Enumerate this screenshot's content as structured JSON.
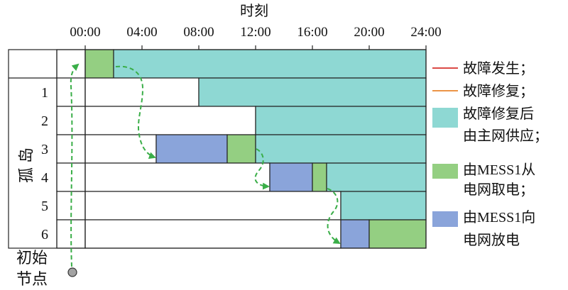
{
  "chart_data": {
    "type": "bar",
    "orientation": "horizontal",
    "xlabel": "时刻",
    "ylabel": "孤岛",
    "xlim": [
      "00:00",
      "24:00"
    ],
    "x_ticks": [
      "00:00",
      "04:00",
      "08:00",
      "12:00",
      "16:00",
      "20:00",
      "24:00"
    ],
    "legend_position": "right",
    "rows": [
      {
        "label": "",
        "segments": [
          {
            "start": "00:00",
            "end": "02:00",
            "series": 3
          },
          {
            "start": "02:00",
            "end": "24:00",
            "series": 2
          }
        ]
      },
      {
        "label": "1",
        "segments": [
          {
            "start": "00:00",
            "end": "08:00",
            "series": null
          },
          {
            "start": "08:00",
            "end": "24:00",
            "series": 2
          }
        ]
      },
      {
        "label": "2",
        "segments": [
          {
            "start": "00:00",
            "end": "12:00",
            "series": null
          },
          {
            "start": "12:00",
            "end": "24:00",
            "series": 2
          }
        ]
      },
      {
        "label": "3",
        "segments": [
          {
            "start": "00:00",
            "end": "05:00",
            "series": null
          },
          {
            "start": "05:00",
            "end": "10:00",
            "series": 4
          },
          {
            "start": "10:00",
            "end": "12:00",
            "series": 3
          },
          {
            "start": "12:00",
            "end": "24:00",
            "series": 2
          }
        ]
      },
      {
        "label": "4",
        "segments": [
          {
            "start": "00:00",
            "end": "13:00",
            "series": null
          },
          {
            "start": "13:00",
            "end": "16:00",
            "series": 4
          },
          {
            "start": "16:00",
            "end": "17:00",
            "series": 3
          },
          {
            "start": "17:00",
            "end": "24:00",
            "series": 2
          }
        ]
      },
      {
        "label": "5",
        "segments": [
          {
            "start": "00:00",
            "end": "18:00",
            "series": null
          },
          {
            "start": "18:00",
            "end": "24:00",
            "series": 2
          }
        ]
      },
      {
        "label": "6",
        "segments": [
          {
            "start": "00:00",
            "end": "18:00",
            "series": null
          },
          {
            "start": "18:00",
            "end": "20:00",
            "series": 4
          },
          {
            "start": "20:00",
            "end": "24:00",
            "series": 3
          }
        ]
      }
    ],
    "legend": [
      {
        "label": [
          "故障发生；"
        ],
        "marker": "line",
        "color": "#d6302b"
      },
      {
        "label": [
          "故障修复；"
        ],
        "marker": "line",
        "color": "#e9852c"
      },
      {
        "label": [
          "故障修复后",
          "由主网供应；"
        ],
        "marker": "rect",
        "color": "#8ed8d3"
      },
      {
        "label": [
          "由MESS1从",
          "电网取电；"
        ],
        "marker": "rect",
        "color": "#94cf82"
      },
      {
        "label": [
          "由MESS1向",
          "电网放电"
        ],
        "marker": "rect",
        "color": "#8aa4da"
      }
    ],
    "start_node": {
      "label": [
        "初始",
        "节点"
      ]
    },
    "route_color": "#3aae48"
  }
}
